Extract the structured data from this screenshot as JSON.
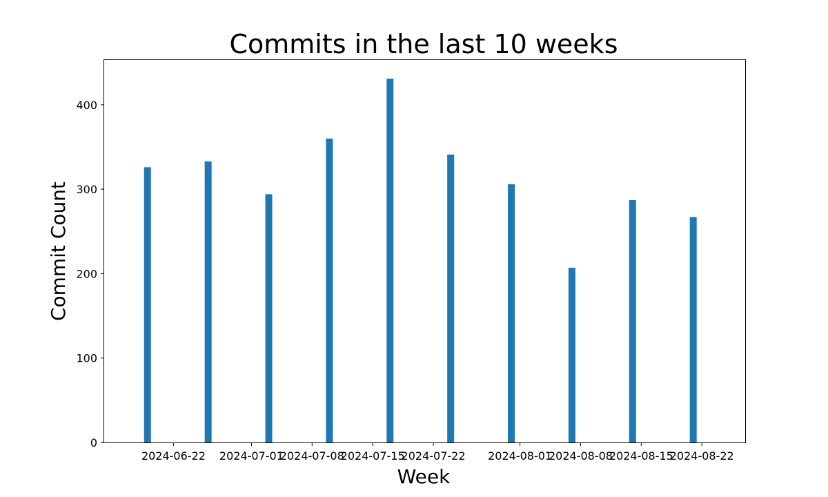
{
  "chart_data": {
    "type": "bar",
    "title": "Commits in the last 10 weeks",
    "xlabel": "Week",
    "ylabel": "Commit Count",
    "x": [
      "2024-06-19",
      "2024-06-26",
      "2024-07-03",
      "2024-07-10",
      "2024-07-17",
      "2024-07-24",
      "2024-07-31",
      "2024-08-07",
      "2024-08-14",
      "2024-08-21"
    ],
    "values": [
      326,
      333,
      294,
      360,
      431,
      341,
      306,
      207,
      287,
      267
    ],
    "xticks": [
      "2024-06-22",
      "2024-07-01",
      "2024-07-08",
      "2024-07-15",
      "2024-07-22",
      "2024-08-01",
      "2024-08-08",
      "2024-08-15",
      "2024-08-22"
    ],
    "yticks": [
      0,
      100,
      200,
      300,
      400
    ],
    "xlim": [
      "2024-06-14",
      "2024-08-27"
    ],
    "ylim": [
      0,
      453
    ],
    "grid": false,
    "bar_color": "#1f77b4"
  }
}
